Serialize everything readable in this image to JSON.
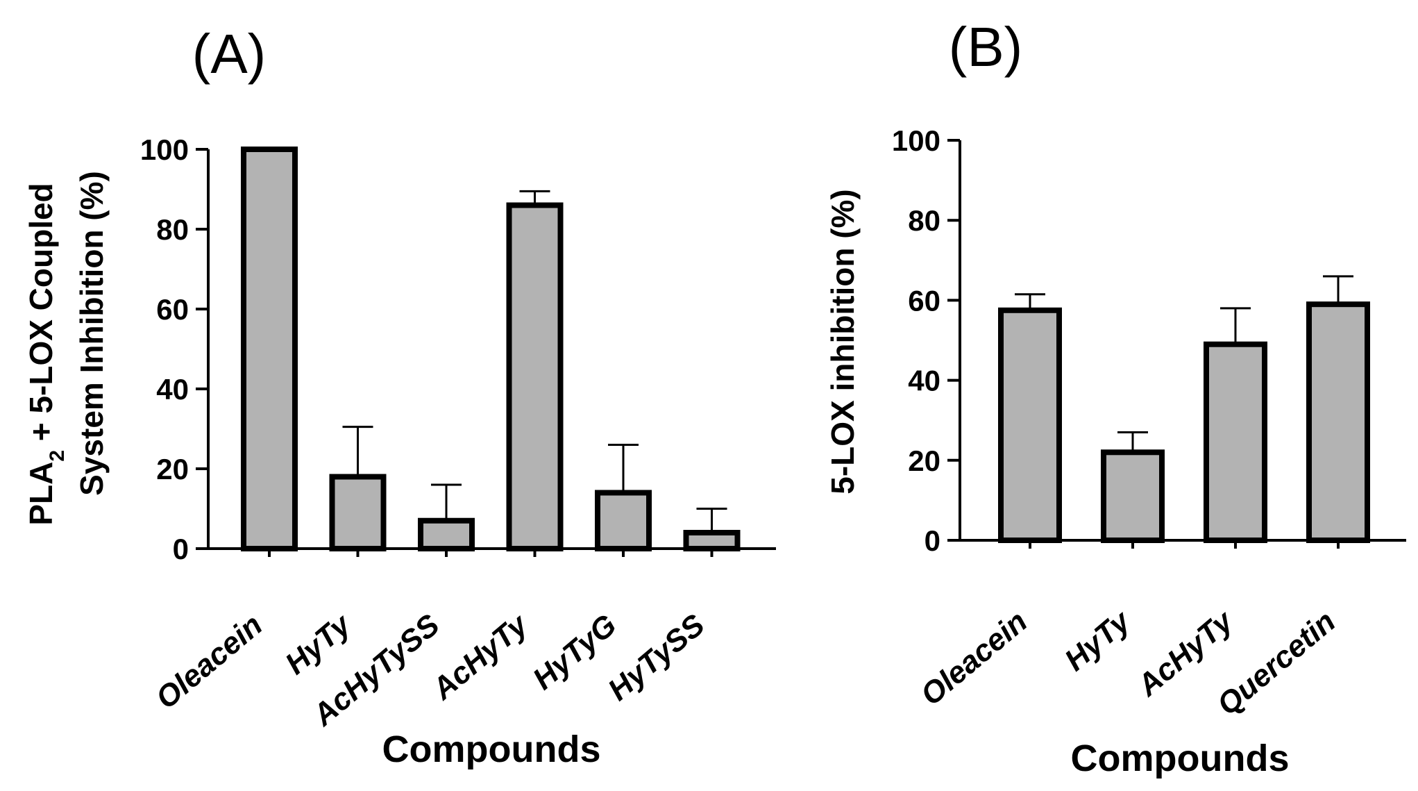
{
  "chart_data": [
    {
      "type": "bar",
      "panel_label": "(A)",
      "categories": [
        "Oleacein",
        "HyTy",
        "AcHyTySS",
        "AcHyTy",
        "HyTyG",
        "HyTySS"
      ],
      "values": [
        100,
        18,
        7,
        86,
        14,
        4
      ],
      "errors": [
        0,
        12.5,
        9,
        3.5,
        12,
        6
      ],
      "xlabel": "Compounds",
      "ylabel_line1": "PLA",
      "ylabel_sub": "2",
      "ylabel_line1_rest": " + 5-LOX Coupled",
      "ylabel_line2": "System Inhibition (%)",
      "ylim": [
        0,
        100
      ],
      "yticks": [
        0,
        20,
        40,
        60,
        80,
        100
      ],
      "bar_color": "#b3b3b3"
    },
    {
      "type": "bar",
      "panel_label": "(B)",
      "categories": [
        "Oleacein",
        "HyTy",
        "AcHyTy",
        "Quercetin"
      ],
      "values": [
        57.5,
        22,
        49,
        59
      ],
      "errors": [
        4,
        5,
        9,
        7
      ],
      "xlabel": "Compounds",
      "ylabel": "5-LOX inhibition (%)",
      "ylim": [
        0,
        100
      ],
      "yticks": [
        0,
        20,
        40,
        60,
        80,
        100
      ],
      "bar_color": "#b3b3b3"
    }
  ]
}
